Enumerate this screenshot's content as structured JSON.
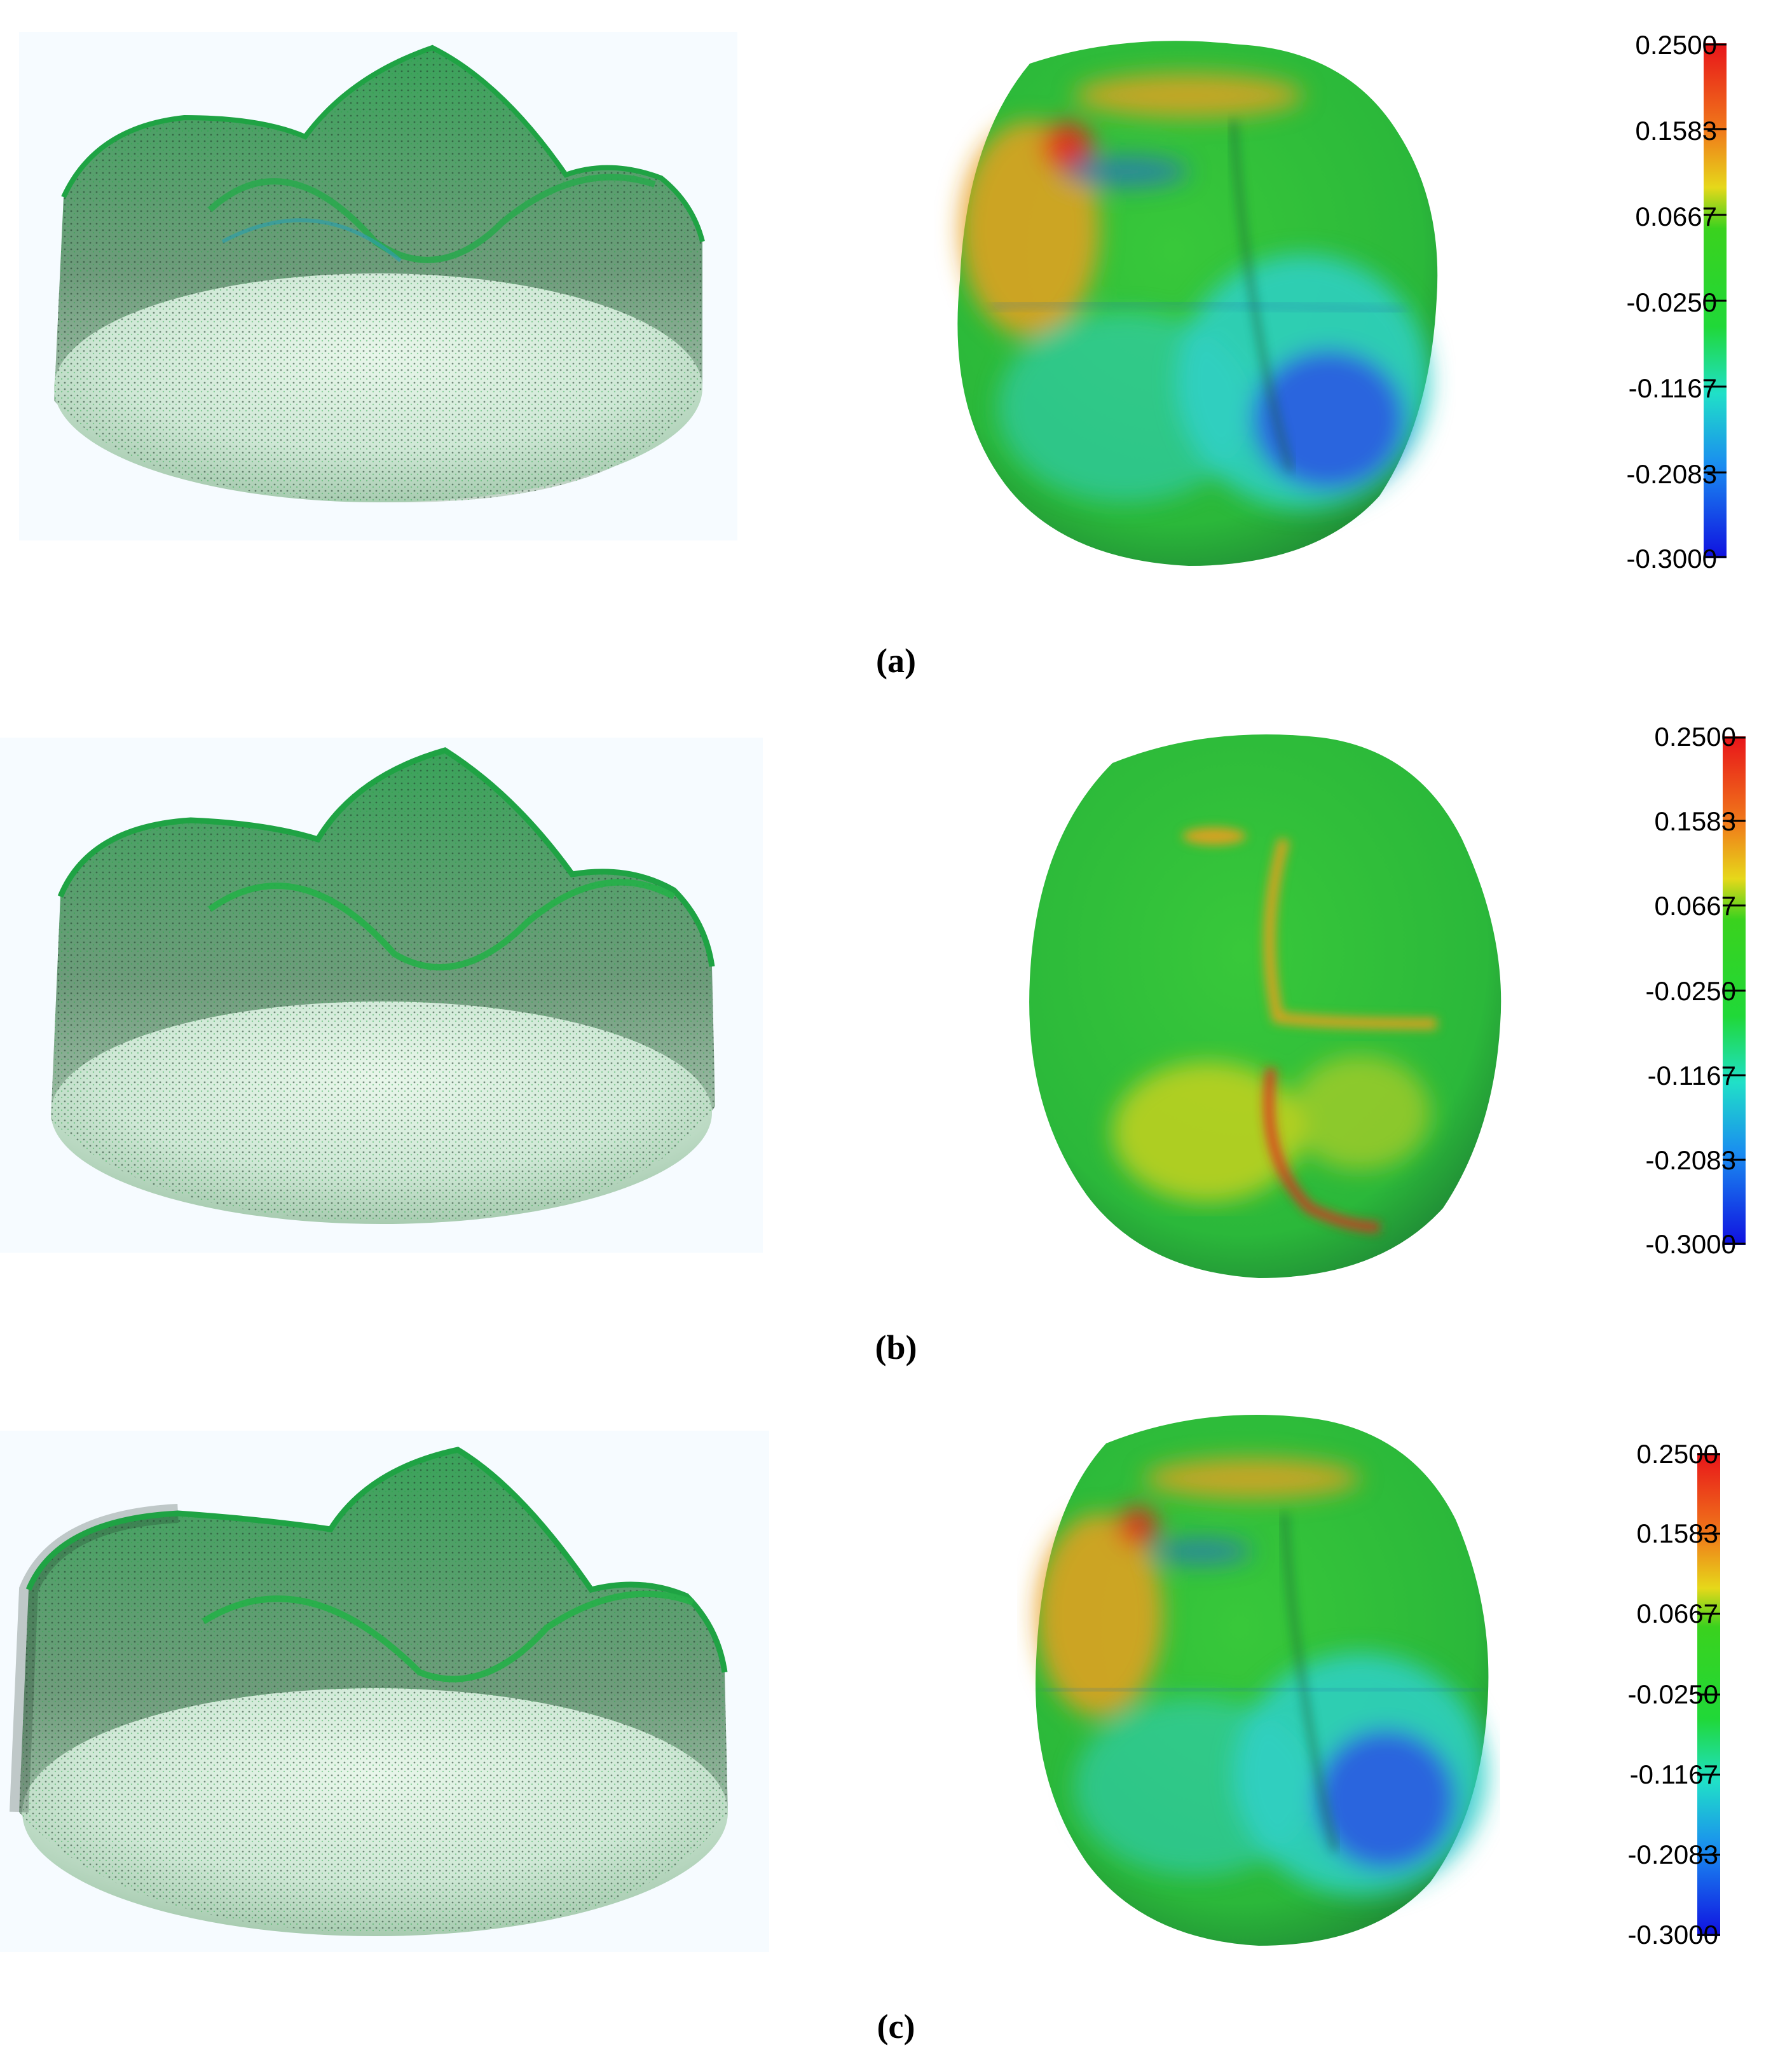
{
  "figure": {
    "panels": [
      {
        "caption": "(a)",
        "colorbar": {
          "ticks": [
            "0.2500",
            "0.1583",
            "0.0667",
            "-0.0250",
            "-0.1167",
            "-0.2083",
            "-0.3000"
          ],
          "max": 0.25,
          "min": -0.3
        }
      },
      {
        "caption": "(b)",
        "colorbar": {
          "ticks": [
            "0.2500",
            "0.1583",
            "0.0667",
            "-0.0250",
            "-0.1167",
            "-0.2083",
            "-0.3000"
          ],
          "max": 0.25,
          "min": -0.3
        }
      },
      {
        "caption": "(c)",
        "colorbar": {
          "ticks": [
            "0.2500",
            "0.1583",
            "0.0667",
            "-0.0250",
            "-0.1167",
            "-0.2083",
            "-0.3000"
          ],
          "max": 0.25,
          "min": -0.3
        }
      }
    ],
    "colors": {
      "cloud_dark": "#1d3b2c",
      "cloud_green": "#22b04a",
      "map_base": "#2fc23a",
      "map_blue": "#2a5fe0",
      "map_cyan": "#2fd0c8",
      "map_orange": "#e8a020",
      "map_red": "#e0301c"
    }
  }
}
